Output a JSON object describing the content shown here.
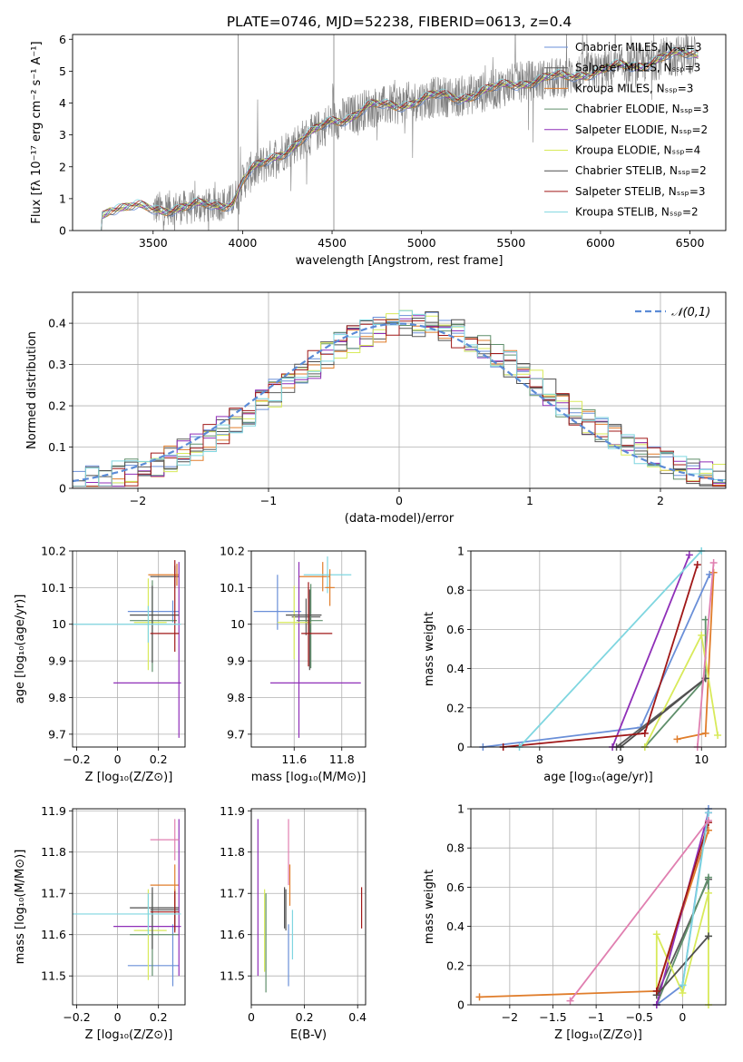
{
  "figure": {
    "title": "PLATE=0746, MJD=52238, FIBERID=0613, z=0.4",
    "model_colors": {
      "Chabrier MILES": "#6a8fd8",
      "Salpeter MILES": "#5a5a5a",
      "Kroupa MILES": "#e07d2b",
      "Chabrier ELODIE": "#5f8f6b",
      "Salpeter ELODIE": "#8f2fb8",
      "Kroupa ELODIE": "#d8ea5a",
      "Chabrier STELIB": "#4f4f4f",
      "Salpeter STELIB": "#a01818",
      "Kroupa STELIB": "#7fd6e0",
      "Kroupa STELIB alt": "#e07fb0"
    },
    "data_color": "#808080"
  },
  "chart_data": [
    {
      "id": "spectrum",
      "type": "line",
      "title": "PLATE=0746, MJD=52238, FIBERID=0613, z=0.4",
      "xlabel": "wavelength [Angstrom, rest frame]",
      "ylabel": "Flux [fλ 10⁻¹⁷ erg cm⁻² s⁻¹ A⁻¹]",
      "xlim": [
        3050,
        6700
      ],
      "ylim": [
        0,
        6.15
      ],
      "xticks": [
        3500,
        4000,
        4500,
        5000,
        5500,
        6000,
        6500
      ],
      "yticks": [
        0,
        1,
        2,
        3,
        4,
        5,
        6
      ],
      "grid": false,
      "legend_position": "right",
      "legend": [
        {
          "label": "Chabrier MILES, Nₛₛₚ=3",
          "color": "#6a8fd8"
        },
        {
          "label": "Salpeter MILES, Nₛₛₚ=3",
          "color": "#5a5a5a"
        },
        {
          "label": "Kroupa MILES, Nₛₛₚ=3",
          "color": "#e07d2b"
        },
        {
          "label": "Chabrier ELODIE, Nₛₛₚ=3",
          "color": "#5f8f6b"
        },
        {
          "label": "Salpeter ELODIE, Nₛₛₚ=2",
          "color": "#8f2fb8"
        },
        {
          "label": "Kroupa ELODIE, Nₛₛₚ=4",
          "color": "#d8ea5a"
        },
        {
          "label": "Chabrier STELIB, Nₛₛₚ=2",
          "color": "#4f4f4f"
        },
        {
          "label": "Salpeter STELIB, Nₛₛₚ=3",
          "color": "#a01818"
        },
        {
          "label": "Kroupa STELIB, Nₛₛₚ=2",
          "color": "#7fd6e0"
        }
      ],
      "model_trend": {
        "wavelength": [
          3210,
          3215,
          3260,
          3350,
          3500,
          3600,
          3700,
          3800,
          3900,
          3950,
          4000,
          4050,
          4100,
          4200,
          4300,
          4400,
          4500,
          4600,
          4700,
          4800,
          4900,
          5000,
          5100,
          5200,
          5300,
          5400,
          5500,
          5600,
          5700,
          5800,
          5900,
          6000,
          6100,
          6200,
          6300,
          6400,
          6500,
          6550
        ],
        "flux": [
          0,
          0.55,
          0.75,
          0.7,
          0.68,
          0.72,
          0.72,
          0.78,
          0.85,
          0.95,
          1.55,
          1.85,
          2.0,
          2.4,
          2.75,
          3.05,
          3.45,
          3.6,
          3.85,
          3.9,
          4.0,
          4.1,
          4.2,
          4.2,
          4.3,
          4.4,
          4.6,
          4.7,
          4.75,
          4.8,
          4.95,
          5.0,
          5.1,
          5.2,
          5.35,
          5.45,
          5.55,
          5.6
        ]
      },
      "data_range": {
        "wavelength": [
          3500,
          6530
        ]
      }
    },
    {
      "id": "residuals",
      "type": "bar",
      "xlabel": "(data-model)/error",
      "ylabel": "Normed distribution",
      "xlim": [
        -2.5,
        2.5
      ],
      "ylim": [
        0,
        0.475
      ],
      "xticks": [
        -2,
        -1,
        0,
        1,
        2
      ],
      "yticks": [
        0.0,
        0.1,
        0.2,
        0.3,
        0.4
      ],
      "grid": true,
      "legend_position": "top-right",
      "legend": [
        {
          "label": "𝒩(0,1)",
          "color": "#5b8bd6",
          "style": "dashed"
        }
      ],
      "bin_width": 0.1
    },
    {
      "id": "age_vs_Z",
      "type": "scatter",
      "xlabel": "Z [log₁₀(Z/Z⊙)]",
      "ylabel": "age  [log₁₀(age/yr)]",
      "xlim": [
        -0.22,
        0.33
      ],
      "ylim": [
        9.665,
        10.2
      ],
      "xticks": [
        -0.2,
        0.0,
        0.2
      ],
      "yticks": [
        9.7,
        9.8,
        9.9,
        10.0,
        10.1,
        10.2
      ],
      "grid": true,
      "points": [
        {
          "model": "Chabrier MILES",
          "x": 0.27,
          "xerr": [
            0.22,
            0.03
          ],
          "y": 10.035,
          "yerr": [
            0.03,
            0.03
          ]
        },
        {
          "model": "Salpeter MILES",
          "x": 0.28,
          "xerr": [
            0.12,
            0.02
          ],
          "y": 10.13,
          "yerr": [
            0.03,
            0.03
          ]
        },
        {
          "model": "Kroupa MILES",
          "x": 0.29,
          "xerr": [
            0.14,
            0.01
          ],
          "y": 10.135,
          "yerr": [
            0.03,
            0.03
          ]
        },
        {
          "model": "Chabrier ELODIE",
          "x": 0.17,
          "xerr": [
            0.11,
            0.12
          ],
          "y": 10.01,
          "yerr": [
            0.14,
            0.11
          ]
        },
        {
          "model": "Salpeter ELODIE",
          "x": 0.3,
          "xerr": [
            0.32,
            0.01
          ],
          "y": 9.84,
          "yerr": [
            0.15,
            0.33
          ]
        },
        {
          "model": "Kroupa ELODIE",
          "x": 0.15,
          "xerr": [
            0.07,
            0.09
          ],
          "y": 10.005,
          "yerr": [
            0.13,
            0.12
          ]
        },
        {
          "model": "Chabrier STELIB",
          "x": 0.17,
          "xerr": [
            0.11,
            0.13
          ],
          "y": 10.025,
          "yerr": [
            0.13,
            0.08
          ]
        },
        {
          "model": "Salpeter STELIB",
          "x": 0.28,
          "xerr": [
            0.12,
            0.02
          ],
          "y": 9.975,
          "yerr": [
            0.05,
            0.2
          ]
        },
        {
          "model": "Kroupa STELIB",
          "x": 0.15,
          "xerr": [
            0.37,
            0.16
          ],
          "y": 10.0,
          "yerr": [
            0.05,
            0.05
          ]
        }
      ]
    },
    {
      "id": "age_vs_mass",
      "type": "scatter",
      "xlabel": "mass [log₁₀(M/M⊙)]",
      "ylabel": "",
      "xlim": [
        11.42,
        11.9
      ],
      "ylim": [
        9.665,
        10.2
      ],
      "xticks": [
        11.6,
        11.8
      ],
      "yticks": [
        9.7,
        9.8,
        9.9,
        10.0,
        10.1,
        10.2
      ],
      "grid": true,
      "points": [
        {
          "model": "Chabrier MILES",
          "x": 11.53,
          "xerr": [
            0.1,
            0.1
          ],
          "y": 10.035,
          "yerr": [
            0.05,
            0.1
          ]
        },
        {
          "model": "Salpeter MILES",
          "x": 11.65,
          "xerr": [
            0.06,
            0.06
          ],
          "y": 10.02,
          "yerr": [
            0.05,
            0.05
          ]
        },
        {
          "model": "Kroupa MILES",
          "x": 11.72,
          "xerr": [
            0.1,
            0.03
          ],
          "y": 10.13,
          "yerr": [
            0.04,
            0.04
          ]
        },
        {
          "model": "Chabrier ELODIE",
          "x": 11.67,
          "xerr": [
            0.06,
            0.05
          ],
          "y": 10.01,
          "yerr": [
            0.13,
            0.1
          ]
        },
        {
          "model": "Salpeter ELODIE",
          "x": 11.62,
          "xerr": [
            0.12,
            0.26
          ],
          "y": 9.84,
          "yerr": [
            0.15,
            0.33
          ]
        },
        {
          "model": "Kroupa ELODIE",
          "x": 11.6,
          "xerr": [
            0.07,
            0.07
          ],
          "y": 10.005,
          "yerr": [
            0.1,
            0.1
          ]
        },
        {
          "model": "Chabrier STELIB",
          "x": 11.665,
          "xerr": [
            0.1,
            0.05
          ],
          "y": 10.025,
          "yerr": [
            0.15,
            0.07
          ]
        },
        {
          "model": "Salpeter STELIB",
          "x": 11.66,
          "xerr": [
            0.03,
            0.1
          ],
          "y": 9.975,
          "yerr": [
            0.09,
            0.14
          ]
        },
        {
          "model": "Kroupa STELIB",
          "x": 11.74,
          "xerr": [
            0.1,
            0.1
          ],
          "y": 10.135,
          "yerr": [
            0.05,
            0.05
          ]
        },
        {
          "model": "Kroupa MILES",
          "x": 11.75,
          "xerr": [
            0.02,
            0.02
          ],
          "y": 10.1,
          "yerr": [
            0.05,
            0.05
          ]
        }
      ]
    },
    {
      "id": "weight_vs_age",
      "type": "line",
      "xlabel": "age  [log₁₀(age/yr)]",
      "ylabel": "mass weight",
      "xlim": [
        7.15,
        10.3
      ],
      "ylim": [
        0,
        1.0
      ],
      "xticks": [
        8,
        9,
        10
      ],
      "yticks": [
        0.0,
        0.2,
        0.4,
        0.6,
        0.8,
        1.0
      ],
      "grid": true,
      "series": [
        {
          "model": "Chabrier MILES",
          "x": [
            7.3,
            9.25,
            10.1
          ],
          "y": [
            0.0,
            0.1,
            0.88
          ]
        },
        {
          "model": "Salpeter MILES",
          "x": [
            8.95,
            10.05
          ],
          "y": [
            0.0,
            0.35
          ]
        },
        {
          "model": "Kroupa MILES",
          "x": [
            9.7,
            10.05,
            10.15
          ],
          "y": [
            0.04,
            0.07,
            0.89
          ]
        },
        {
          "model": "Chabrier ELODIE",
          "x": [
            9.3,
            10.05,
            10.05
          ],
          "y": [
            0.0,
            0.35,
            0.65
          ]
        },
        {
          "model": "Salpeter ELODIE",
          "x": [
            8.9,
            9.85
          ],
          "y": [
            0.0,
            0.98
          ]
        },
        {
          "model": "Kroupa ELODIE",
          "x": [
            9.3,
            10.0,
            10.2
          ],
          "y": [
            0.0,
            0.57,
            0.06
          ]
        },
        {
          "model": "Chabrier STELIB",
          "x": [
            9.0,
            10.05
          ],
          "y": [
            0.0,
            0.35
          ]
        },
        {
          "model": "Salpeter STELIB",
          "x": [
            7.55,
            9.3,
            9.95
          ],
          "y": [
            0.0,
            0.07,
            0.93
          ]
        },
        {
          "model": "Kroupa STELIB",
          "x": [
            7.75,
            10.0
          ],
          "y": [
            0.0,
            1.0
          ]
        },
        {
          "model": "Kroupa STELIB alt",
          "x": [
            9.95,
            10.15
          ],
          "y": [
            0.0,
            0.94
          ]
        }
      ]
    },
    {
      "id": "mass_vs_Z",
      "type": "scatter",
      "xlabel": "Z [log₁₀(Z/Z⊙)]",
      "ylabel": "mass [log₁₀(M/M⊙)]",
      "xlim": [
        -0.22,
        0.33
      ],
      "ylim": [
        11.43,
        11.905
      ],
      "xticks": [
        -0.2,
        0.0,
        0.2
      ],
      "yticks": [
        11.5,
        11.6,
        11.7,
        11.8,
        11.9
      ],
      "grid": true,
      "points": [
        {
          "model": "Chabrier MILES",
          "x": 0.27,
          "xerr": [
            0.22,
            0.03
          ],
          "y": 11.525,
          "yerr": [
            0.05,
            0.1
          ]
        },
        {
          "model": "Salpeter MILES",
          "x": 0.28,
          "xerr": [
            0.12,
            0.02
          ],
          "y": 11.66,
          "yerr": [
            0.05,
            0.05
          ]
        },
        {
          "model": "Kroupa MILES",
          "x": 0.28,
          "xerr": [
            0.12,
            0.02
          ],
          "y": 11.72,
          "yerr": [
            0.05,
            0.05
          ]
        },
        {
          "model": "Chabrier ELODIE",
          "x": 0.17,
          "xerr": [
            0.11,
            0.13
          ],
          "y": 11.6,
          "yerr": [
            0.1,
            0.1
          ]
        },
        {
          "model": "Salpeter ELODIE",
          "x": 0.3,
          "xerr": [
            0.32,
            0.01
          ],
          "y": 11.62,
          "yerr": [
            0.12,
            0.26
          ]
        },
        {
          "model": "Kroupa ELODIE",
          "x": 0.15,
          "xerr": [
            0.07,
            0.09
          ],
          "y": 11.61,
          "yerr": [
            0.12,
            0.1
          ]
        },
        {
          "model": "Chabrier STELIB",
          "x": 0.17,
          "xerr": [
            0.11,
            0.13
          ],
          "y": 11.665,
          "yerr": [
            0.1,
            0.05
          ]
        },
        {
          "model": "Salpeter STELIB",
          "x": 0.28,
          "xerr": [
            0.12,
            0.02
          ],
          "y": 11.655,
          "yerr": [
            0.05,
            0.05
          ]
        },
        {
          "model": "Kroupa STELIB",
          "x": 0.15,
          "xerr": [
            0.37,
            0.16
          ],
          "y": 11.65,
          "yerr": [
            0.05,
            0.05
          ]
        },
        {
          "model": "Kroupa STELIB alt",
          "x": 0.28,
          "xerr": [
            0.12,
            0.02
          ],
          "y": 11.83,
          "yerr": [
            0.05,
            0.05
          ]
        }
      ]
    },
    {
      "id": "mass_vs_ebv",
      "type": "scatter",
      "xlabel": "E(B-V)",
      "ylabel": "",
      "xlim": [
        0.0,
        0.43
      ],
      "ylim": [
        11.43,
        11.905
      ],
      "xticks": [
        0.0,
        0.2,
        0.4
      ],
      "yticks": [
        11.5,
        11.6,
        11.7,
        11.8,
        11.9
      ],
      "grid": true,
      "points": [
        {
          "model": "Chabrier MILES",
          "x": 0.14,
          "y": 11.525,
          "yerr": [
            0.05,
            0.1
          ]
        },
        {
          "model": "Salpeter MILES",
          "x": 0.13,
          "y": 11.66,
          "yerr": [
            0.05,
            0.05
          ]
        },
        {
          "model": "Kroupa MILES",
          "x": 0.145,
          "y": 11.72,
          "yerr": [
            0.05,
            0.05
          ]
        },
        {
          "model": "Chabrier ELODIE",
          "x": 0.055,
          "y": 11.6,
          "yerr": [
            0.14,
            0.1
          ]
        },
        {
          "model": "Salpeter ELODIE",
          "x": 0.025,
          "y": 11.62,
          "yerr": [
            0.12,
            0.26
          ]
        },
        {
          "model": "Kroupa ELODIE",
          "x": 0.05,
          "y": 11.61,
          "yerr": [
            0.1,
            0.1
          ]
        },
        {
          "model": "Chabrier STELIB",
          "x": 0.125,
          "y": 11.665,
          "yerr": [
            0.05,
            0.05
          ]
        },
        {
          "model": "Salpeter STELIB",
          "x": 0.415,
          "y": 11.665,
          "yerr": [
            0.05,
            0.05
          ]
        },
        {
          "model": "Kroupa STELIB",
          "x": 0.155,
          "y": 11.6,
          "yerr": [
            0.06,
            0.06
          ]
        },
        {
          "model": "Kroupa STELIB alt",
          "x": 0.14,
          "y": 11.8,
          "yerr": [
            0.08,
            0.08
          ]
        }
      ]
    },
    {
      "id": "weight_vs_Z",
      "type": "line",
      "xlabel": "Z [log₁₀(Z/Z⊙)]",
      "ylabel": "mass weight",
      "xlim": [
        -2.45,
        0.5
      ],
      "ylim": [
        0,
        1.0
      ],
      "xticks": [
        -2.0,
        -1.5,
        -1.0,
        -0.5,
        0.0
      ],
      "yticks": [
        0.0,
        0.2,
        0.4,
        0.6,
        0.8,
        1.0
      ],
      "grid": true,
      "series": [
        {
          "model": "Chabrier MILES",
          "x": [
            -0.3,
            0.0,
            0.3
          ],
          "y": [
            0.0,
            0.1,
            1.0
          ]
        },
        {
          "model": "Salpeter MILES",
          "x": [
            -0.3,
            0.3
          ],
          "y": [
            0.05,
            0.64
          ]
        },
        {
          "model": "Kroupa MILES",
          "x": [
            -2.35,
            -0.3,
            0.3
          ],
          "y": [
            0.04,
            0.07,
            0.89
          ]
        },
        {
          "model": "Chabrier ELODIE",
          "x": [
            -0.3,
            0.3,
            0.3
          ],
          "y": [
            0.0,
            0.65,
            0.35
          ]
        },
        {
          "model": "Salpeter ELODIE",
          "x": [
            -0.3,
            0.3
          ],
          "y": [
            0.0,
            0.98
          ]
        },
        {
          "model": "Kroupa ELODIE",
          "x": [
            -0.3,
            -0.3,
            0.0,
            0.3,
            0.3
          ],
          "y": [
            0.05,
            0.36,
            0.06,
            0.57,
            0.0
          ]
        },
        {
          "model": "Chabrier STELIB",
          "x": [
            -0.3,
            0.3
          ],
          "y": [
            0.05,
            0.35
          ]
        },
        {
          "model": "Salpeter STELIB",
          "x": [
            -0.3,
            0.3
          ],
          "y": [
            0.07,
            0.93
          ]
        },
        {
          "model": "Kroupa STELIB",
          "x": [
            0.0,
            0.3
          ],
          "y": [
            0.1,
            0.98
          ]
        },
        {
          "model": "Kroupa STELIB alt",
          "x": [
            -1.3,
            0.3
          ],
          "y": [
            0.02,
            0.94
          ]
        }
      ]
    }
  ]
}
